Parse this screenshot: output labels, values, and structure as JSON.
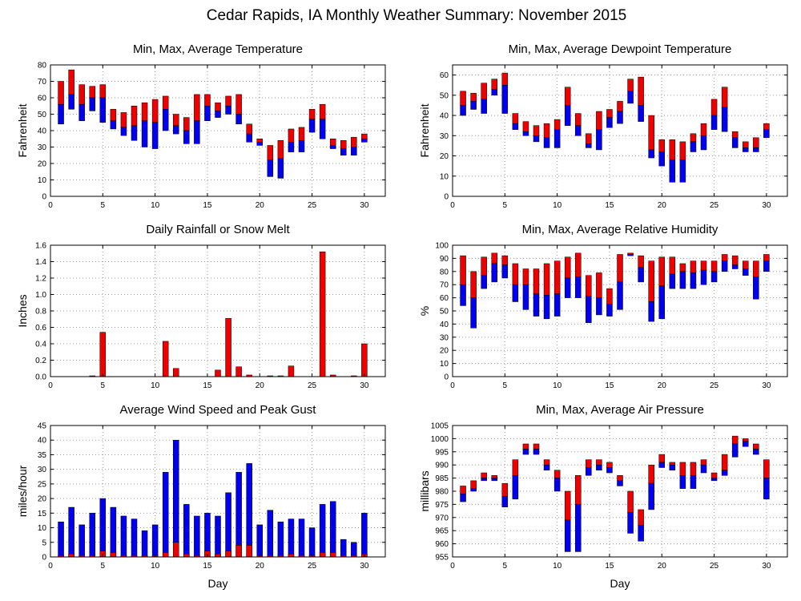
{
  "title": "Cedar Rapids, IA Monthly Weather Summary: November 2015",
  "colors": {
    "red": "#ee0000",
    "blue": "#0000ee",
    "grid": "#9a9a9a",
    "axis": "#000000"
  },
  "chart_data": [
    {
      "id": "temperature",
      "type": "bar",
      "title": "Min, Max, Average Temperature",
      "xlabel": "",
      "ylabel": "Fahrenheit",
      "xlim": [
        0,
        32
      ],
      "ylim": [
        0,
        80
      ],
      "xticks": [
        0,
        5,
        10,
        15,
        20,
        25,
        30
      ],
      "yticks": [
        0,
        10,
        20,
        30,
        40,
        50,
        60,
        70,
        80
      ],
      "grid": true,
      "days": [
        1,
        2,
        3,
        4,
        5,
        6,
        7,
        8,
        9,
        10,
        11,
        12,
        13,
        14,
        15,
        16,
        17,
        18,
        19,
        20,
        21,
        22,
        23,
        24,
        25,
        26,
        27,
        28,
        29,
        30
      ],
      "min": [
        44,
        53,
        46,
        52,
        45,
        41,
        37,
        34,
        30,
        29,
        40,
        38,
        32,
        32,
        46,
        48,
        50,
        44,
        33,
        31,
        12,
        11,
        27,
        27,
        39,
        35,
        29,
        25,
        25,
        33
      ],
      "avg": [
        56,
        62,
        56,
        60,
        60,
        46,
        42,
        43,
        46,
        45,
        53,
        43,
        40,
        46,
        55,
        52,
        55,
        50,
        38,
        33,
        22,
        23,
        33,
        34,
        47,
        47,
        31,
        29,
        30,
        35
      ],
      "max": [
        70,
        77,
        68,
        67,
        68,
        53,
        51,
        55,
        57,
        59,
        61,
        50,
        48,
        62,
        62,
        57,
        61,
        62,
        44,
        35,
        31,
        34,
        41,
        42,
        53,
        56,
        35,
        34,
        36,
        38
      ]
    },
    {
      "id": "dewpoint",
      "type": "bar",
      "title": "Min, Max, Average Dewpoint Temperature",
      "xlabel": "",
      "ylabel": "Fahrenheit",
      "xlim": [
        0,
        32
      ],
      "ylim": [
        0,
        65
      ],
      "xticks": [
        0,
        5,
        10,
        15,
        20,
        25,
        30
      ],
      "yticks": [
        0,
        10,
        20,
        30,
        40,
        50,
        60
      ],
      "grid": true,
      "days": [
        1,
        2,
        3,
        4,
        5,
        6,
        7,
        8,
        9,
        10,
        11,
        12,
        13,
        14,
        15,
        16,
        17,
        18,
        19,
        20,
        21,
        22,
        23,
        24,
        25,
        26,
        27,
        28,
        29,
        30
      ],
      "min": [
        40,
        43,
        41,
        50,
        41,
        33,
        30,
        27,
        24,
        24,
        35,
        30,
        24,
        23,
        34,
        36,
        46,
        37,
        19,
        15,
        7,
        7,
        22,
        23,
        33,
        32,
        24,
        22,
        22,
        29
      ],
      "avg": [
        45,
        47,
        48,
        53,
        55,
        36,
        32,
        30,
        29,
        33,
        45,
        35,
        26,
        33,
        39,
        42,
        52,
        45,
        23,
        22,
        18,
        18,
        27,
        30,
        40,
        44,
        29,
        24,
        24,
        33
      ],
      "max": [
        52,
        51,
        56,
        58,
        61,
        41,
        37,
        35,
        36,
        38,
        54,
        41,
        31,
        42,
        43,
        47,
        58,
        59,
        40,
        28,
        28,
        27,
        31,
        36,
        48,
        54,
        32,
        27,
        29,
        36
      ]
    },
    {
      "id": "rainfall",
      "type": "bar",
      "title": "Daily Rainfall or Snow Melt",
      "xlabel": "",
      "ylabel": "Inches",
      "xlim": [
        0,
        32
      ],
      "ylim": [
        0,
        1.6
      ],
      "xticks": [
        0,
        5,
        10,
        15,
        20,
        25,
        30
      ],
      "yticks": [
        0.0,
        0.2,
        0.4,
        0.6,
        0.8,
        1.0,
        1.2,
        1.4,
        1.6
      ],
      "ytick_labels": [
        "0.0",
        "0.2",
        "0.4",
        "0.6",
        "0.8",
        "1.0",
        "1.2",
        "1.4",
        "1.6"
      ],
      "grid": true,
      "days": [
        1,
        2,
        3,
        4,
        5,
        6,
        7,
        8,
        9,
        10,
        11,
        12,
        13,
        14,
        15,
        16,
        17,
        18,
        19,
        20,
        21,
        22,
        23,
        24,
        25,
        26,
        27,
        28,
        29,
        30
      ],
      "values": [
        0,
        0,
        0,
        0.01,
        0.54,
        0,
        0,
        0,
        0,
        0,
        0.43,
        0.1,
        0,
        0,
        0,
        0.08,
        0.71,
        0.12,
        0.02,
        0,
        0.01,
        0.01,
        0.13,
        0,
        0,
        1.52,
        0.02,
        0,
        0.01,
        0.4
      ]
    },
    {
      "id": "humidity",
      "type": "bar",
      "title": "Min, Max, Average Relative Humidity",
      "xlabel": "",
      "ylabel": "%",
      "xlim": [
        0,
        32
      ],
      "ylim": [
        0,
        100
      ],
      "xticks": [
        0,
        5,
        10,
        15,
        20,
        25,
        30
      ],
      "yticks": [
        0,
        10,
        20,
        30,
        40,
        50,
        60,
        70,
        80,
        90,
        100
      ],
      "grid": true,
      "days": [
        1,
        2,
        3,
        4,
        5,
        6,
        7,
        8,
        9,
        10,
        11,
        12,
        13,
        14,
        15,
        16,
        17,
        18,
        19,
        20,
        21,
        22,
        23,
        24,
        25,
        26,
        27,
        28,
        29,
        30
      ],
      "min": [
        54,
        37,
        67,
        72,
        75,
        57,
        51,
        46,
        44,
        46,
        60,
        60,
        41,
        47,
        46,
        51,
        92,
        72,
        42,
        44,
        67,
        67,
        67,
        70,
        72,
        80,
        82,
        77,
        59,
        80
      ],
      "avg": [
        70,
        60,
        77,
        86,
        85,
        70,
        70,
        63,
        62,
        63,
        75,
        76,
        61,
        60,
        55,
        72,
        93,
        83,
        57,
        69,
        78,
        80,
        79,
        81,
        80,
        88,
        85,
        82,
        76,
        88
      ],
      "max": [
        92,
        80,
        91,
        94,
        92,
        86,
        82,
        82,
        86,
        88,
        91,
        94,
        77,
        79,
        67,
        93,
        94,
        92,
        88,
        91,
        91,
        86,
        88,
        88,
        88,
        93,
        92,
        88,
        88,
        93
      ]
    },
    {
      "id": "wind",
      "type": "bar",
      "title": "Average Wind Speed and Peak Gust",
      "xlabel": "Day",
      "ylabel": "miles/hour",
      "xlim": [
        0,
        32
      ],
      "ylim": [
        0,
        45
      ],
      "xticks": [
        0,
        5,
        10,
        15,
        20,
        25,
        30
      ],
      "yticks": [
        0,
        5,
        10,
        15,
        20,
        25,
        30,
        35,
        40,
        45
      ],
      "grid": true,
      "days": [
        1,
        2,
        3,
        4,
        5,
        6,
        7,
        8,
        9,
        10,
        11,
        12,
        13,
        14,
        15,
        16,
        17,
        18,
        19,
        20,
        21,
        22,
        23,
        24,
        25,
        26,
        27,
        28,
        29,
        30
      ],
      "average": [
        0.5,
        1,
        0.5,
        0.5,
        2,
        1.5,
        0.5,
        0.5,
        0.5,
        0.5,
        1.5,
        5,
        1,
        0.5,
        2,
        1,
        2,
        4,
        4,
        0.5,
        0.5,
        0.5,
        1,
        0.5,
        0.5,
        1.5,
        1.5,
        0.5,
        0.5,
        1
      ],
      "gust": [
        12,
        17,
        11,
        15,
        20,
        17,
        14,
        13,
        9,
        11,
        29,
        40,
        18,
        14,
        15,
        14,
        22,
        29,
        32,
        11,
        16,
        12,
        13,
        13,
        10,
        18,
        19,
        6,
        5,
        15
      ]
    },
    {
      "id": "pressure",
      "type": "bar",
      "title": "Min, Max, Average Air Pressure",
      "xlabel": "Day",
      "ylabel": "millibars",
      "xlim": [
        0,
        32
      ],
      "ylim": [
        955,
        1005
      ],
      "xticks": [
        0,
        5,
        10,
        15,
        20,
        25,
        30
      ],
      "yticks": [
        955,
        960,
        965,
        970,
        975,
        980,
        985,
        990,
        995,
        1000,
        1005
      ],
      "grid": true,
      "days": [
        1,
        2,
        3,
        4,
        5,
        6,
        7,
        8,
        9,
        10,
        11,
        12,
        13,
        14,
        15,
        16,
        17,
        18,
        19,
        20,
        21,
        22,
        23,
        24,
        25,
        26,
        27,
        28,
        29,
        30
      ],
      "min": [
        976,
        980,
        984,
        984,
        974,
        977,
        994,
        994,
        988,
        980,
        957,
        957,
        986,
        988,
        987,
        982,
        964,
        961,
        973,
        989,
        988,
        981,
        981,
        987,
        984,
        986,
        993,
        997,
        994,
        977
      ],
      "avg": [
        979,
        981,
        985,
        985,
        978,
        986,
        996,
        996,
        990,
        985,
        969,
        975,
        989,
        990,
        989,
        984,
        972,
        967,
        983,
        991,
        990,
        986,
        986,
        990,
        985,
        988,
        998,
        999,
        996,
        985
      ],
      "max": [
        982,
        984,
        987,
        986,
        983,
        992,
        998,
        998,
        992,
        988,
        980,
        986,
        992,
        992,
        991,
        986,
        980,
        973,
        990,
        994,
        991,
        991,
        991,
        992,
        987,
        994,
        1001,
        1000,
        998,
        992
      ]
    }
  ]
}
